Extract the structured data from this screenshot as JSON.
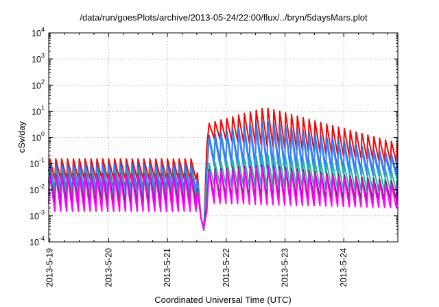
{
  "chart_data": {
    "type": "line",
    "title": "/data/run/goesPlots/archive/2013-05-24/22:00/flux/../bryn/5daysMars.plot",
    "xlabel": "Coordinated Universal Time (UTC)",
    "ylabel": "cSv/day",
    "yscale": "log",
    "ylim": [
      0.0001,
      10000
    ],
    "xlim": [
      -0.02,
      5.92
    ],
    "x_unit": "days since 2013-5-19 00:00 UTC",
    "x_ticks": [
      {
        "value": 0,
        "label": "2013-5-19"
      },
      {
        "value": 1,
        "label": "2013-5-20"
      },
      {
        "value": 2,
        "label": "2013-5-21"
      },
      {
        "value": 3,
        "label": "2013-5-22"
      },
      {
        "value": 4,
        "label": "2013-5-23"
      },
      {
        "value": 5,
        "label": "2013-5-24"
      }
    ],
    "y_ticks": [
      {
        "value": 0.0001,
        "base": "10",
        "exp": "-4"
      },
      {
        "value": 0.001,
        "base": "10",
        "exp": "-3"
      },
      {
        "value": 0.01,
        "base": "10",
        "exp": "-2"
      },
      {
        "value": 0.1,
        "base": "10",
        "exp": "-1"
      },
      {
        "value": 1,
        "base": "10",
        "exp": "0"
      },
      {
        "value": 10,
        "base": "10",
        "exp": "1"
      },
      {
        "value": 100,
        "base": "10",
        "exp": "2"
      },
      {
        "value": 1000,
        "base": "10",
        "exp": "3"
      },
      {
        "value": 10000,
        "base": "10",
        "exp": "4"
      }
    ],
    "grid": true,
    "legend": "none",
    "period_hours": 2.4,
    "series": [
      {
        "color": "#ff0000",
        "before": {
          "peak": 0.15,
          "trough": 0.025
        },
        "after": {
          "peak_start": 3.5,
          "peak_max": 14,
          "peak_end": 0.6,
          "trough_start": 0.9,
          "trough_end": 0.1
        }
      },
      {
        "color": "#1c6ee6",
        "before": {
          "peak": 0.1,
          "trough": 0.01
        },
        "after": {
          "peak_start": 1.2,
          "peak_max": 4.5,
          "peak_end": 0.2,
          "trough_start": 0.12,
          "trough_end": 0.04
        }
      },
      {
        "color": "#3a86ff",
        "before": {
          "peak": 0.07,
          "trough": 0.008
        },
        "after": {
          "peak_start": 0.9,
          "peak_max": 2.5,
          "peak_end": 0.15,
          "trough_start": 0.08,
          "trough_end": 0.03
        }
      },
      {
        "color": "#20b89a",
        "before": {
          "peak": 0.05,
          "trough": 0.005
        },
        "after": {
          "peak_start": 0.1,
          "peak_max": 0.22,
          "peak_end": 0.05,
          "trough_start": 0.015,
          "trough_end": 0.008
        }
      },
      {
        "color": "#7a1f7a",
        "before": {
          "peak": 0.04,
          "trough": 0.003
        },
        "after": {
          "peak_start": 0.06,
          "peak_max": 0.09,
          "peak_end": 0.02,
          "trough_start": 0.005,
          "trough_end": 0.004
        }
      },
      {
        "color": "#ff00ff",
        "before": {
          "peak": 0.035,
          "trough": 0.0015
        },
        "after": {
          "peak_start": 0.05,
          "peak_max": 0.07,
          "peak_end": 0.015,
          "trough_start": 0.003,
          "trough_end": 0.002
        }
      }
    ],
    "event": {
      "dip_start": 2.45,
      "min_x": 2.62,
      "rise_x": 2.71,
      "min_value": 0.00028
    }
  }
}
